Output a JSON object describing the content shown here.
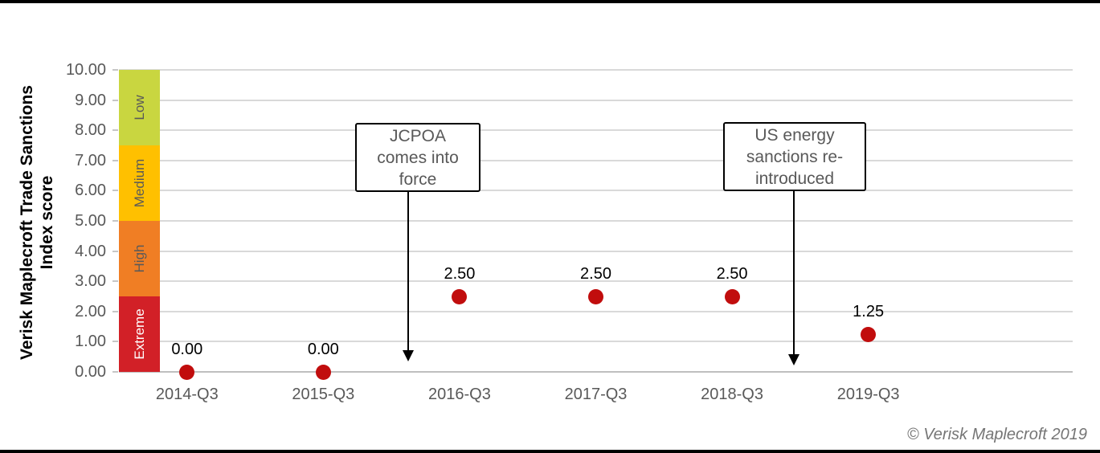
{
  "page": {
    "copyright": "© Verisk Maplecroft 2019",
    "background_color": "#ffffff",
    "border_bar_color": "#000000"
  },
  "chart_data": {
    "type": "scatter",
    "title": "",
    "ylabel": "Verisk Maplecroft Trade Sanctions Index score",
    "ylabel_lines": [
      "Verisk Maplecroft Trade Sanctions",
      "Index score"
    ],
    "categories": [
      "2014-Q3",
      "2015-Q3",
      "2016-Q3",
      "2017-Q3",
      "2018-Q3",
      "2019-Q3"
    ],
    "values": [
      0.0,
      0.0,
      2.5,
      2.5,
      2.5,
      1.25
    ],
    "point_labels": [
      "0.00",
      "0.00",
      "2.50",
      "2.50",
      "2.50",
      "1.25"
    ],
    "point_color": "#c10d0d",
    "ylim": [
      0,
      10
    ],
    "ytick_step": 1,
    "ytick_labels": [
      "0.00",
      "1.00",
      "2.00",
      "3.00",
      "4.00",
      "5.00",
      "6.00",
      "7.00",
      "8.00",
      "9.00",
      "10.00"
    ],
    "grid": true,
    "gridline_color": "#d9d9d9",
    "axis_line_color": "#bfbfbf",
    "axis_text_color": "#595959",
    "x_slot_count": 7,
    "legend_position": "none",
    "risk_bands": [
      {
        "label": "Low",
        "from": 7.5,
        "to": 10.0,
        "color": "#c9d640",
        "label_color": "#595959"
      },
      {
        "label": "Medium",
        "from": 5.0,
        "to": 7.5,
        "color": "#ffc000",
        "label_color": "#595959"
      },
      {
        "label": "High",
        "from": 2.5,
        "to": 5.0,
        "color": "#f07e24",
        "label_color": "#595959"
      },
      {
        "label": "Extreme",
        "from": 0.0,
        "to": 2.5,
        "color": "#d22027",
        "label_color": "#ffffff"
      }
    ],
    "annotations": [
      {
        "lines": [
          "JCPOA",
          "comes into",
          "force"
        ],
        "arrow": "down"
      },
      {
        "lines": [
          "US energy",
          "sanctions re-",
          "introduced"
        ],
        "arrow": "down"
      }
    ]
  }
}
